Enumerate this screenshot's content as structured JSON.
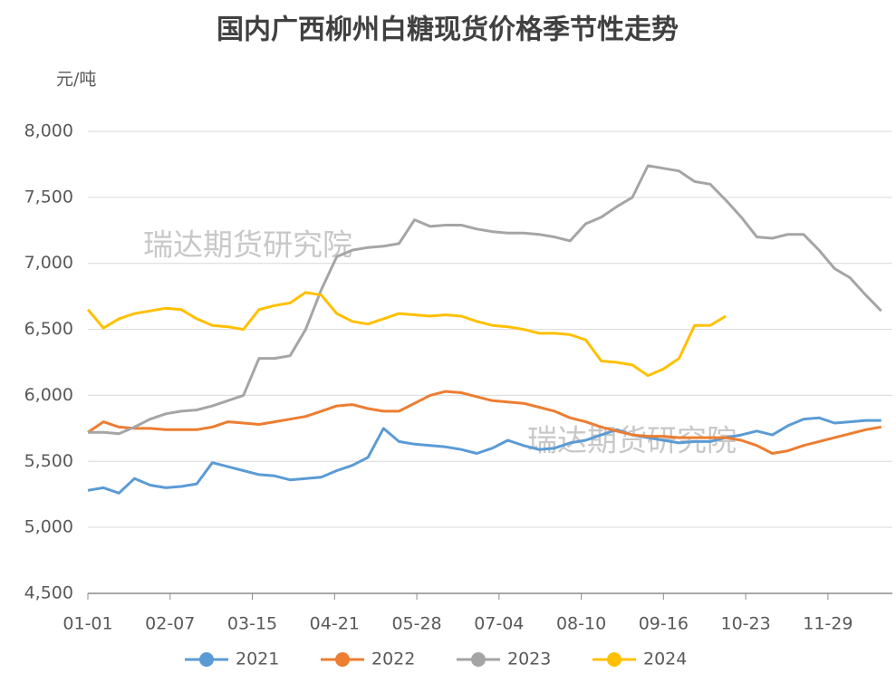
{
  "chart_data": {
    "type": "line",
    "title": "国内广西柳州白糖现货价格季节性走势",
    "y_unit": "元/吨",
    "watermarks": [
      "瑞达期货研究院",
      "瑞达期货研究院"
    ],
    "x": [
      0,
      7,
      14,
      21,
      28,
      35,
      42,
      49,
      56,
      63,
      70,
      77,
      84,
      91,
      98,
      105,
      112,
      119,
      126,
      133,
      140,
      147,
      154,
      161,
      168,
      175,
      182,
      189,
      196,
      203,
      210,
      217,
      224,
      231,
      238,
      245,
      252,
      259,
      266,
      273,
      280,
      287,
      294,
      301,
      308,
      315,
      322,
      329,
      336,
      343,
      350,
      357
    ],
    "xlim": [
      0,
      362
    ],
    "xticks": [
      {
        "value": 0,
        "label": "01-01"
      },
      {
        "value": 37,
        "label": "02-07"
      },
      {
        "value": 74,
        "label": "03-15"
      },
      {
        "value": 111,
        "label": "04-21"
      },
      {
        "value": 148,
        "label": "05-28"
      },
      {
        "value": 185,
        "label": "07-04"
      },
      {
        "value": 222,
        "label": "08-10"
      },
      {
        "value": 259,
        "label": "09-16"
      },
      {
        "value": 296,
        "label": "10-23"
      },
      {
        "value": 333,
        "label": "11-29"
      }
    ],
    "ylim": [
      4500,
      8000
    ],
    "yticks": [
      {
        "value": 4500,
        "label": "4,500"
      },
      {
        "value": 5000,
        "label": "5,000"
      },
      {
        "value": 5500,
        "label": "5,500"
      },
      {
        "value": 6000,
        "label": "6,000"
      },
      {
        "value": 6500,
        "label": "6,500"
      },
      {
        "value": 7000,
        "label": "7,000"
      },
      {
        "value": 7500,
        "label": "7,500"
      },
      {
        "value": 8000,
        "label": "8,000"
      }
    ],
    "grid": true,
    "legend": "bottom",
    "series": [
      {
        "name": "2021",
        "color": "#5b9bd5",
        "values": [
          5280,
          5300,
          5260,
          5370,
          5320,
          5300,
          5310,
          5330,
          5490,
          5460,
          5430,
          5400,
          5390,
          5360,
          5370,
          5380,
          5430,
          5470,
          5530,
          5750,
          5650,
          5630,
          5620,
          5610,
          5590,
          5560,
          5600,
          5660,
          5620,
          5590,
          5600,
          5640,
          5660,
          5700,
          5740,
          5700,
          5680,
          5660,
          5640,
          5650,
          5650,
          5680,
          5700,
          5730,
          5700,
          5770,
          5820,
          5830,
          5790,
          5800,
          5810,
          5810
        ]
      },
      {
        "name": "2022",
        "color": "#ed7d31",
        "values": [
          5720,
          5800,
          5760,
          5750,
          5750,
          5740,
          5740,
          5740,
          5760,
          5800,
          5790,
          5780,
          5800,
          5820,
          5840,
          5880,
          5920,
          5930,
          5900,
          5880,
          5880,
          5940,
          6000,
          6030,
          6020,
          5990,
          5960,
          5950,
          5940,
          5910,
          5880,
          5830,
          5800,
          5760,
          5730,
          5700,
          5690,
          5690,
          5680,
          5680,
          5680,
          5680,
          5660,
          5620,
          5560,
          5580,
          5620,
          5650,
          5680,
          5710,
          5740,
          5760
        ]
      },
      {
        "name": "2023",
        "color": "#a5a5a5",
        "values": [
          5720,
          5720,
          5710,
          5760,
          5820,
          5860,
          5880,
          5890,
          5920,
          5960,
          6000,
          6280,
          6280,
          6300,
          6500,
          6800,
          7050,
          7100,
          7120,
          7130,
          7150,
          7330,
          7280,
          7290,
          7290,
          7260,
          7240,
          7230,
          7230,
          7220,
          7200,
          7170,
          7300,
          7350,
          7430,
          7500,
          7740,
          7720,
          7700,
          7620,
          7600,
          7480,
          7350,
          7200,
          7190,
          7220,
          7220,
          7100,
          6960,
          6890,
          6760,
          6640
        ]
      },
      {
        "name": "2024",
        "color": "#ffc000",
        "values": [
          6650,
          6510,
          6580,
          6620,
          6640,
          6660,
          6650,
          6580,
          6530,
          6520,
          6500,
          6650,
          6680,
          6700,
          6780,
          6760,
          6620,
          6560,
          6540,
          6580,
          6620,
          6610,
          6600,
          6610,
          6600,
          6560,
          6530,
          6520,
          6500,
          6470,
          6470,
          6460,
          6420,
          6260,
          6250,
          6230,
          6150,
          6200,
          6280,
          6530,
          6530,
          6600,
          null,
          null,
          null,
          null,
          null,
          null,
          null,
          null,
          null,
          null
        ]
      }
    ]
  }
}
